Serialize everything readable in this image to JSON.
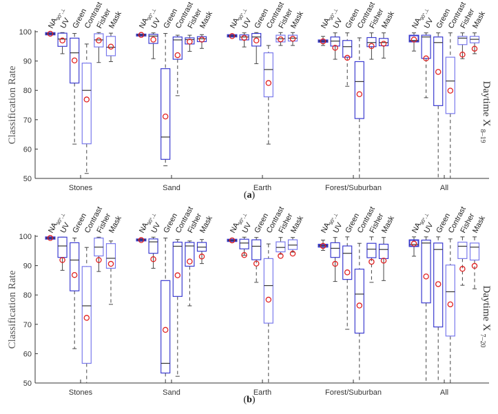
{
  "chart_data": [
    {
      "type": "box",
      "panel_label": "(a)",
      "panel_label_bold": "a",
      "ylabel": "Classification Rate",
      "right_label": "Daytime X",
      "right_label_sub": "8–19",
      "ylim": [
        50,
        100
      ],
      "yticks": [
        "50",
        "60",
        "70",
        "80",
        "90",
        "100"
      ],
      "groups": [
        "Stones",
        "Sand",
        "Earth",
        "Forest/Suburban",
        "All"
      ],
      "methods": [
        {
          "name": "NA",
          "sub": "90°,⊥"
        },
        {
          "name": "UV"
        },
        {
          "name": "Green"
        },
        {
          "name": "Contrast"
        },
        {
          "name": "Fisher"
        },
        {
          "name": "Mask"
        }
      ],
      "stats_order": [
        "min",
        "q1",
        "median",
        "q3",
        "max",
        "mean"
      ],
      "data": [
        [
          [
            98.9,
            99.0,
            99.3,
            99.6,
            99.7,
            99.3
          ],
          [
            92.5,
            95.0,
            97.5,
            99.5,
            99.7,
            97.0
          ],
          [
            61.7,
            82.5,
            92.8,
            97.8,
            99.4,
            90.2
          ],
          [
            51.7,
            61.8,
            80.0,
            89.3,
            95.8,
            76.9
          ],
          [
            89.5,
            94.8,
            97.2,
            99.3,
            99.7,
            97.0
          ],
          [
            89.8,
            91.8,
            94.7,
            98.4,
            99.5,
            94.9
          ]
        ],
        [
          [
            98.5,
            98.6,
            98.9,
            99.1,
            99.2,
            98.9
          ],
          [
            90.8,
            96.0,
            98.5,
            99.1,
            99.6,
            97.3
          ],
          [
            54.3,
            56.5,
            64.1,
            87.4,
            99.4,
            71.1
          ],
          [
            78.2,
            90.6,
            97.2,
            98.2,
            98.8,
            92.0
          ],
          [
            93.3,
            95.8,
            97.3,
            97.9,
            98.8,
            96.6
          ],
          [
            94.3,
            96.6,
            97.6,
            98.3,
            99.0,
            97.3
          ]
        ],
        [
          [
            98.2,
            98.3,
            98.6,
            98.9,
            99.0,
            98.5
          ],
          [
            94.8,
            97.2,
            98.2,
            98.9,
            99.6,
            97.9
          ],
          [
            89.1,
            95.1,
            98.2,
            99.4,
            99.7,
            97.0
          ],
          [
            61.7,
            77.8,
            87.1,
            92.8,
            95.3,
            82.5
          ],
          [
            95.3,
            96.5,
            97.6,
            98.8,
            99.7,
            97.4
          ],
          [
            95.3,
            96.8,
            97.8,
            98.8,
            99.7,
            97.6
          ]
        ],
        [
          [
            95.3,
            96.5,
            96.8,
            97.1,
            98.4,
            96.7
          ],
          [
            90.6,
            95.1,
            96.8,
            98.2,
            99.6,
            94.5
          ],
          [
            81.4,
            91.3,
            94.9,
            97.0,
            99.6,
            91.1
          ],
          [
            50.0,
            70.4,
            83.0,
            89.8,
            97.9,
            78.7
          ],
          [
            90.6,
            94.9,
            96.3,
            98.0,
            99.6,
            95.1
          ],
          [
            91.0,
            95.2,
            96.3,
            97.7,
            99.6,
            95.9
          ]
        ],
        [
          [
            93.4,
            96.6,
            97.0,
            98.7,
            99.6,
            97.3
          ],
          [
            77.5,
            90.9,
            98.2,
            98.8,
            99.6,
            90.9
          ],
          [
            50.0,
            74.8,
            96.3,
            98.2,
            99.6,
            86.3
          ],
          [
            50.0,
            72.1,
            83.2,
            91.3,
            99.6,
            79.9
          ],
          [
            90.8,
            95.6,
            97.8,
            98.4,
            99.6,
            92.2
          ],
          [
            92.5,
            96.2,
            97.4,
            98.4,
            99.6,
            94.2
          ]
        ]
      ]
    },
    {
      "type": "box",
      "panel_label": "(b)",
      "panel_label_bold": "b",
      "ylabel": "Classification Rate",
      "right_label": "Daytime X",
      "right_label_sub": "7–20",
      "ylim": [
        50,
        100
      ],
      "yticks": [
        "50",
        "60",
        "70",
        "80",
        "90",
        "100"
      ],
      "groups": [
        "Stones",
        "Sand",
        "Earth",
        "Forest/Suburban",
        "All"
      ],
      "methods": [
        {
          "name": "NA",
          "sub": "90°,⊥"
        },
        {
          "name": "UV"
        },
        {
          "name": "Green"
        },
        {
          "name": "Contrast"
        },
        {
          "name": "Fisher"
        },
        {
          "name": "Mask"
        }
      ],
      "stats_order": [
        "min",
        "q1",
        "median",
        "q3",
        "max",
        "mean"
      ],
      "data": [
        [
          [
            99.0,
            99.1,
            99.4,
            99.7,
            99.8,
            99.4
          ],
          [
            88.4,
            92.8,
            96.7,
            99.7,
            99.7,
            91.9
          ],
          [
            61.7,
            81.4,
            91.9,
            97.8,
            99.4,
            86.8
          ],
          [
            50.0,
            56.7,
            76.3,
            89.7,
            96.2,
            72.2
          ],
          [
            88.0,
            93.3,
            96.3,
            99.4,
            99.7,
            91.9
          ],
          [
            76.8,
            89.1,
            92.5,
            97.5,
            98.4,
            90.6
          ]
        ],
        [
          [
            98.3,
            98.5,
            98.8,
            99.0,
            99.2,
            98.7
          ],
          [
            89.1,
            94.2,
            98.1,
            99.1,
            99.7,
            92.2
          ],
          [
            50.0,
            53.4,
            56.7,
            84.9,
            99.4,
            68.1
          ],
          [
            52.3,
            79.5,
            96.6,
            98.0,
            98.9,
            86.7
          ],
          [
            76.3,
            89.8,
            96.7,
            97.9,
            98.4,
            91.4
          ],
          [
            90.7,
            94.9,
            96.3,
            97.9,
            98.9,
            93.1
          ]
        ],
        [
          [
            98.2,
            98.3,
            98.6,
            98.9,
            99.0,
            98.6
          ],
          [
            93.5,
            95.7,
            97.7,
            99.0,
            99.7,
            93.6
          ],
          [
            84.3,
            92.0,
            96.6,
            98.8,
            99.6,
            90.7
          ],
          [
            50.0,
            70.4,
            83.2,
            92.4,
            97.4,
            78.4
          ],
          [
            93.9,
            94.7,
            96.2,
            98.1,
            99.6,
            93.3
          ],
          [
            94.6,
            95.5,
            97.0,
            98.8,
            99.6,
            94.1
          ]
        ],
        [
          [
            95.2,
            96.4,
            96.8,
            97.2,
            98.7,
            96.7
          ],
          [
            84.6,
            92.8,
            95.9,
            97.8,
            99.6,
            90.6
          ],
          [
            68.3,
            85.3,
            94.2,
            96.7,
            99.8,
            87.7
          ],
          [
            50.0,
            67.0,
            80.3,
            88.8,
            97.6,
            76.4
          ],
          [
            84.3,
            92.7,
            95.6,
            97.6,
            99.8,
            91.3
          ],
          [
            84.9,
            92.4,
            95.5,
            97.3,
            99.6,
            91.7
          ]
        ],
        [
          [
            93.2,
            96.6,
            97.2,
            98.7,
            99.8,
            97.5
          ],
          [
            50.0,
            77.3,
            97.7,
            98.7,
            99.8,
            86.3
          ],
          [
            50.0,
            69.1,
            95.5,
            97.7,
            99.8,
            83.7
          ],
          [
            50.0,
            66.0,
            81.1,
            90.2,
            99.1,
            76.8
          ],
          [
            83.3,
            92.4,
            96.6,
            98.0,
            99.8,
            88.9
          ],
          [
            82.1,
            91.9,
            96.3,
            97.7,
            99.8,
            89.9
          ]
        ]
      ]
    }
  ],
  "colors": {
    "box": "#3a3ad0",
    "box_light": "#7878ec",
    "median": "#333333",
    "whisker": "#444444",
    "mean": "#e02020",
    "axis": "#333333"
  }
}
